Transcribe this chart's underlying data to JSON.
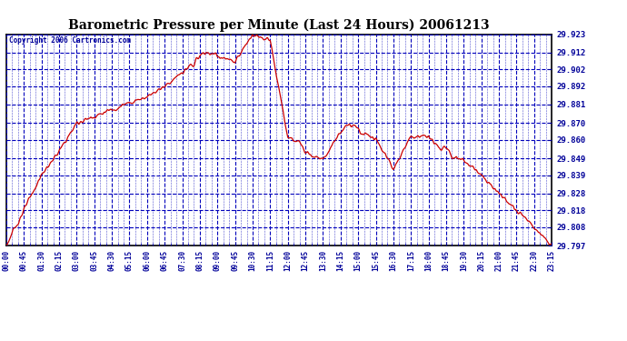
{
  "title": "Barometric Pressure per Minute (Last 24 Hours) 20061213",
  "copyright": "Copyright 2006 Cartronics.com",
  "background_color": "#ffffff",
  "plot_background": "#ffffff",
  "grid_color": "#0000bb",
  "line_color": "#cc0000",
  "text_color": "#000099",
  "title_color": "#000000",
  "ylim": [
    29.797,
    29.923
  ],
  "yticks": [
    29.923,
    29.912,
    29.902,
    29.892,
    29.881,
    29.87,
    29.86,
    29.849,
    29.839,
    29.828,
    29.818,
    29.808,
    29.797
  ],
  "xtick_labels": [
    "00:00",
    "00:45",
    "01:30",
    "02:15",
    "03:00",
    "03:45",
    "04:30",
    "05:15",
    "06:00",
    "06:45",
    "07:30",
    "08:15",
    "09:00",
    "09:45",
    "10:30",
    "11:15",
    "12:00",
    "12:45",
    "13:30",
    "14:15",
    "15:00",
    "15:45",
    "16:30",
    "17:15",
    "18:00",
    "18:45",
    "19:30",
    "20:15",
    "21:00",
    "21:45",
    "22:30",
    "23:15"
  ],
  "key_points_minutes": [
    0,
    45,
    90,
    135,
    180,
    225,
    270,
    315,
    360,
    405,
    450,
    495,
    540,
    585,
    630,
    675,
    720,
    765,
    810,
    855,
    900,
    945,
    990,
    1035,
    1080,
    1125,
    1170,
    1215,
    1260,
    1305,
    1350,
    1395
  ],
  "key_points_pressure": [
    29.797,
    29.818,
    29.839,
    29.853,
    29.87,
    29.874,
    29.878,
    29.882,
    29.886,
    29.892,
    29.9,
    29.908,
    29.91,
    29.906,
    29.923,
    29.919,
    29.861,
    29.857,
    29.848,
    29.865,
    29.865,
    29.861,
    29.843,
    29.862,
    29.862,
    29.85,
    29.848,
    29.839,
    29.828,
    29.818,
    29.808,
    29.797
  ]
}
